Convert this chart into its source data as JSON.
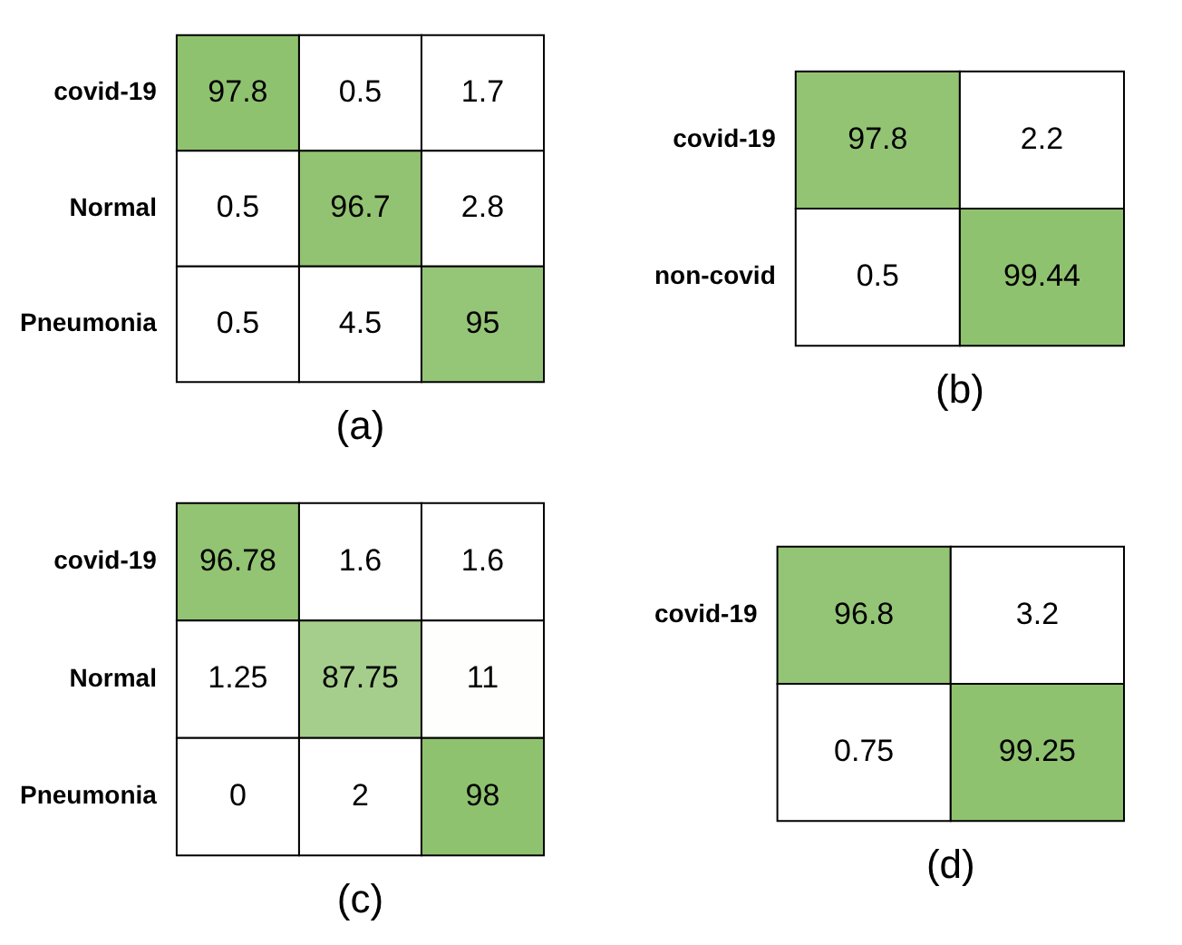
{
  "chart_data": [
    {
      "type": "heatmap",
      "xlabel": "(a)",
      "categories": [
        null,
        null,
        null
      ],
      "y_categories": [
        "covid-19",
        "Normal",
        "Pneumonia"
      ],
      "cells": [
        [
          97.8,
          0.5,
          1.7
        ],
        [
          0.5,
          96.7,
          2.8
        ],
        [
          0.5,
          4.5,
          95
        ]
      ],
      "data_labels": true,
      "tick_labels": "y"
    },
    {
      "type": "heatmap",
      "xlabel": "(b)",
      "categories": [
        null,
        null
      ],
      "y_categories": [
        "covid-19",
        "non-covid"
      ],
      "cells": [
        [
          97.8,
          2.2
        ],
        [
          0.5,
          99.44
        ]
      ],
      "data_labels": true,
      "tick_labels": "y"
    },
    {
      "type": "heatmap",
      "xlabel": "(c)",
      "categories": [
        null,
        null,
        null
      ],
      "y_categories": [
        "covid-19",
        "Normal",
        "Pneumonia"
      ],
      "cells": [
        [
          96.78,
          1.6,
          1.6
        ],
        [
          1.25,
          87.75,
          11
        ],
        [
          0,
          2,
          98
        ]
      ],
      "data_labels": true,
      "tick_labels": "y"
    },
    {
      "type": "heatmap",
      "xlabel": "(d)",
      "categories": [
        null,
        null
      ],
      "y_categories": [
        "covid-19",
        null
      ],
      "cells": [
        [
          96.8,
          3.2
        ],
        [
          0.75,
          99.25
        ]
      ],
      "data_labels": true,
      "tick_labels": "y"
    }
  ]
}
